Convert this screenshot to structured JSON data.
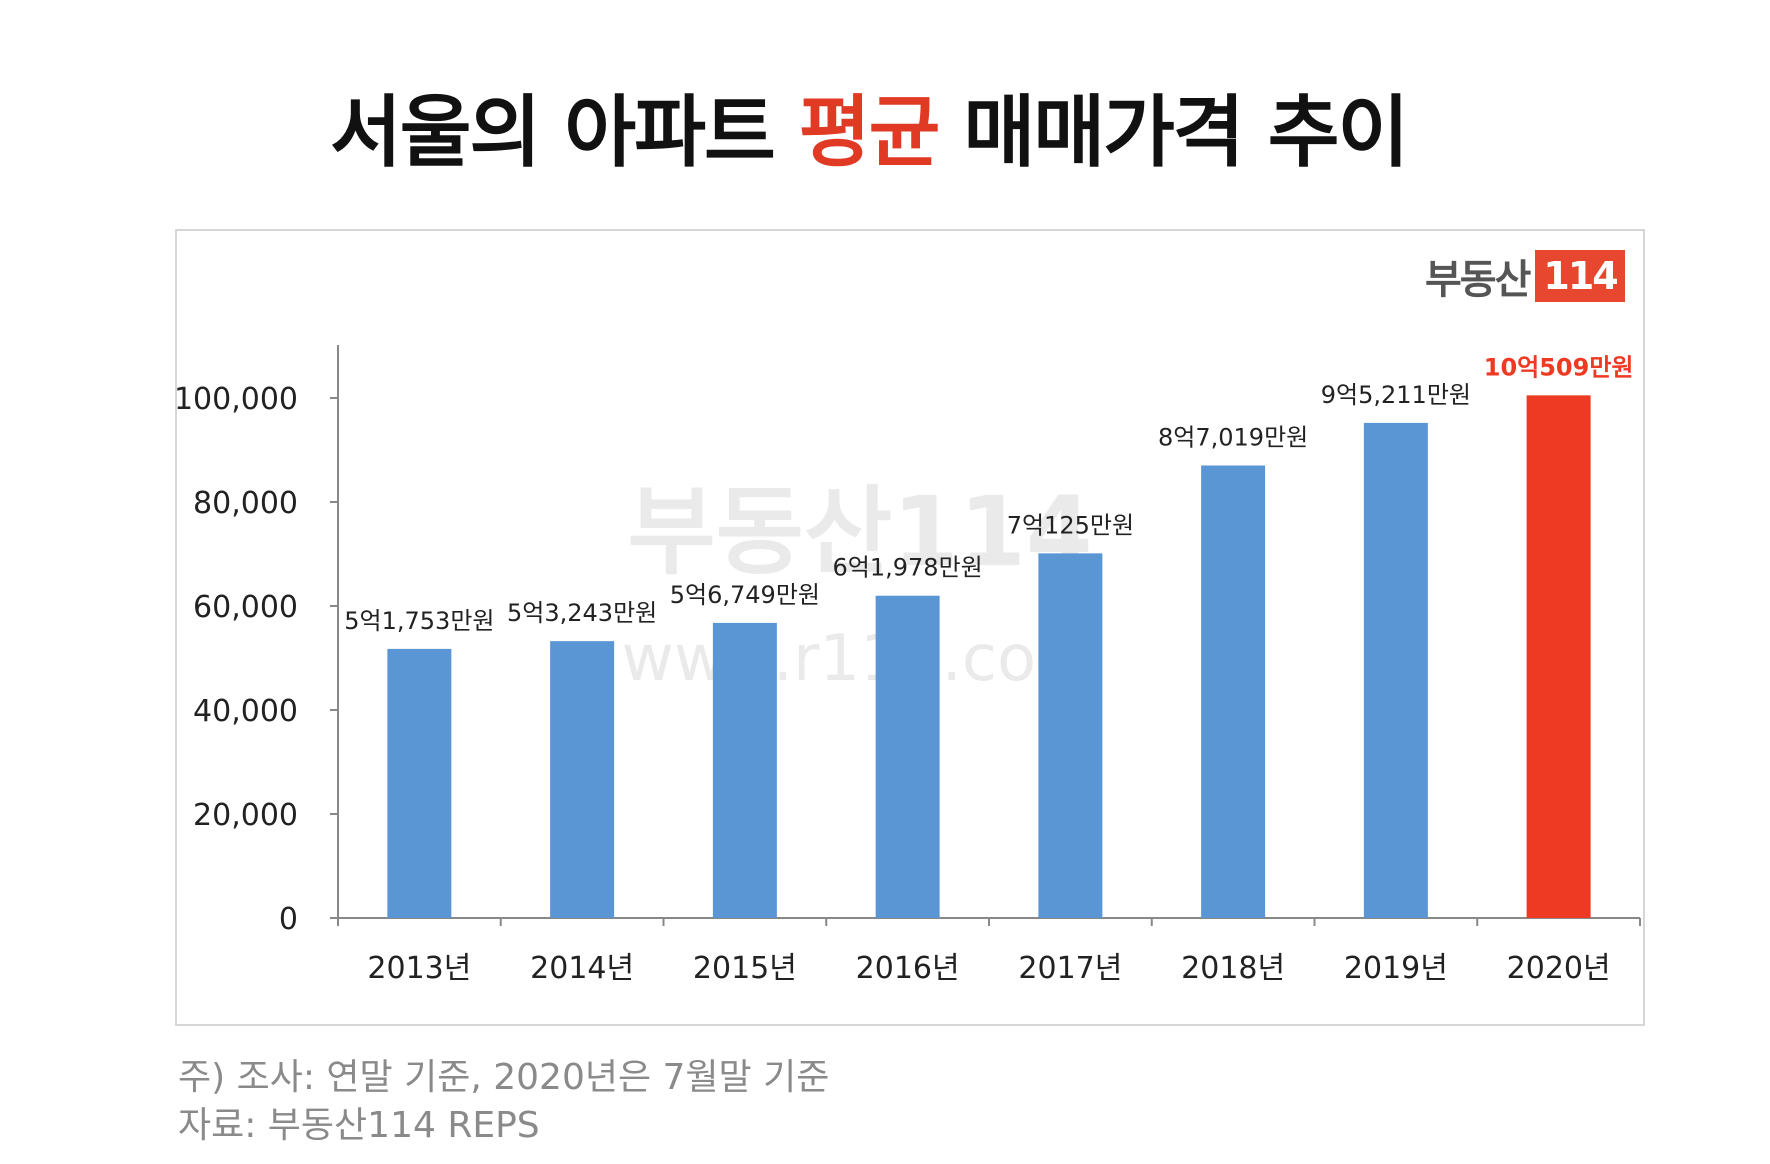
{
  "title": {
    "part1": "서울의 아파트 ",
    "highlight": "평균",
    "part2": " 매매가격 추이",
    "highlight_color": "#e03a25"
  },
  "logo": {
    "text": "부동산",
    "number": "114",
    "box_color": "#e8472f"
  },
  "watermark": {
    "brand": "부동산114",
    "url": "www.r114.com"
  },
  "notes": {
    "line1": "주) 조사: 연말 기준, 2020년은 7월말 기준",
    "line2": "자료: 부동산114 REPS"
  },
  "chart_data": {
    "type": "bar",
    "categories": [
      "2013년",
      "2014년",
      "2015년",
      "2016년",
      "2017년",
      "2018년",
      "2019년",
      "2020년"
    ],
    "values": [
      51753,
      53243,
      56749,
      61978,
      70125,
      87019,
      95211,
      100509
    ],
    "data_labels": [
      "5억1,753만원",
      "5억3,243만원",
      "5억6,749만원",
      "6억1,978만원",
      "7억125만원",
      "8억7,019만원",
      "9억5,211만원",
      "10억509만원"
    ],
    "ylim": [
      0,
      100000
    ],
    "yticks": [
      0,
      20000,
      40000,
      60000,
      80000,
      100000
    ],
    "ytick_labels": [
      "0",
      "20,000",
      "40,000",
      "60,000",
      "80,000",
      "100,000"
    ],
    "bar_color": "#5b96d4",
    "highlight_index": 7,
    "highlight_color": "#ee3a22",
    "grid": false,
    "legend": "none"
  }
}
